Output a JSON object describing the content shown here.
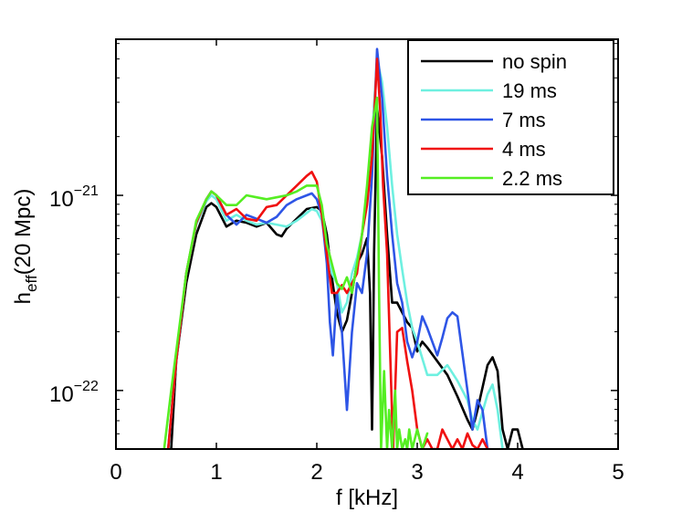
{
  "chart_data": {
    "type": "line",
    "title": "",
    "xlabel": "f [kHz]",
    "ylabel_main": "h",
    "ylabel_sub": "eff",
    "ylabel_rest": "(20 Mpc)",
    "y_scale": "log",
    "xlim": [
      0,
      5
    ],
    "ylim_log10": [
      -22.3,
      -20.2
    ],
    "x_ticks": [
      {
        "value": 0,
        "label": "0"
      },
      {
        "value": 1,
        "label": "1"
      },
      {
        "value": 2,
        "label": "2"
      },
      {
        "value": 3,
        "label": "3"
      },
      {
        "value": 4,
        "label": "4"
      },
      {
        "value": 5,
        "label": "5"
      }
    ],
    "y_ticks": [
      {
        "log10": -21,
        "base": "10",
        "exp": "−21"
      },
      {
        "log10": -22,
        "base": "10",
        "exp": "−22"
      }
    ],
    "legend_position": "top-right",
    "series": [
      {
        "name": "no spin",
        "color": "#000000",
        "x": [
          0.55,
          0.6,
          0.7,
          0.8,
          0.9,
          0.95,
          1.0,
          1.1,
          1.2,
          1.3,
          1.4,
          1.5,
          1.6,
          1.65,
          1.7,
          1.8,
          1.9,
          2.0,
          2.05,
          2.1,
          2.15,
          2.2,
          2.25,
          2.3,
          2.35,
          2.4,
          2.45,
          2.5,
          2.53,
          2.55,
          2.56,
          2.57,
          2.6,
          2.65,
          2.7,
          2.75,
          2.8,
          2.9,
          2.95,
          3.0,
          3.05,
          3.1,
          3.2,
          3.3,
          3.4,
          3.5,
          3.55,
          3.6,
          3.7,
          3.75,
          3.8,
          3.85,
          3.9,
          3.95,
          4.0,
          4.05
        ],
        "y": [
          -22.3,
          -21.85,
          -21.45,
          -21.2,
          -21.06,
          -21.04,
          -21.06,
          -21.16,
          -21.13,
          -21.14,
          -21.16,
          -21.14,
          -21.2,
          -21.21,
          -21.17,
          -21.12,
          -21.07,
          -21.06,
          -21.08,
          -21.2,
          -21.42,
          -21.6,
          -21.7,
          -21.64,
          -21.5,
          -21.35,
          -21.3,
          -21.22,
          -21.5,
          -22.2,
          -21.8,
          -21.3,
          -20.55,
          -20.8,
          -21.2,
          -21.55,
          -21.55,
          -21.65,
          -21.68,
          -21.8,
          -21.75,
          -21.78,
          -21.85,
          -21.92,
          -22.03,
          -22.15,
          -22.2,
          -22.1,
          -21.87,
          -21.83,
          -21.9,
          -22.2,
          -22.3,
          -22.2,
          -22.2,
          -22.3
        ]
      },
      {
        "name": "19 ms",
        "color": "#6ef0e0",
        "x": [
          0.52,
          0.6,
          0.7,
          0.8,
          0.9,
          0.95,
          1.0,
          1.1,
          1.2,
          1.3,
          1.4,
          1.5,
          1.6,
          1.7,
          1.8,
          1.9,
          1.95,
          2.0,
          2.05,
          2.1,
          2.15,
          2.2,
          2.25,
          2.3,
          2.35,
          2.4,
          2.45,
          2.5,
          2.55,
          2.6,
          2.65,
          2.7,
          2.75,
          2.8,
          2.85,
          2.9,
          2.95,
          3.0,
          3.1,
          3.2,
          3.3,
          3.4,
          3.5,
          3.55,
          3.6,
          3.7,
          3.75,
          3.8,
          3.85
        ],
        "y": [
          -22.3,
          -21.85,
          -21.4,
          -21.15,
          -21.03,
          -21.0,
          -21.02,
          -21.13,
          -21.1,
          -21.13,
          -21.15,
          -21.14,
          -21.15,
          -21.16,
          -21.13,
          -21.09,
          -21.07,
          -21.08,
          -21.13,
          -21.27,
          -21.4,
          -21.45,
          -21.6,
          -21.55,
          -21.4,
          -21.32,
          -21.2,
          -21.0,
          -20.7,
          -20.3,
          -20.42,
          -20.65,
          -20.95,
          -21.2,
          -21.38,
          -21.55,
          -21.68,
          -21.75,
          -21.92,
          -21.92,
          -21.87,
          -21.95,
          -22.05,
          -22.15,
          -22.2,
          -22.02,
          -21.97,
          -22.1,
          -22.3
        ]
      },
      {
        "name": "7 ms",
        "color": "#2e55e6",
        "x": [
          0.52,
          0.6,
          0.7,
          0.8,
          0.9,
          0.95,
          1.0,
          1.1,
          1.2,
          1.3,
          1.4,
          1.5,
          1.6,
          1.7,
          1.8,
          1.9,
          1.95,
          2.0,
          2.05,
          2.1,
          2.13,
          2.16,
          2.2,
          2.25,
          2.3,
          2.35,
          2.4,
          2.45,
          2.5,
          2.55,
          2.6,
          2.65,
          2.7,
          2.75,
          2.8,
          2.85,
          2.9,
          2.95,
          3.0,
          3.05,
          3.1,
          3.2,
          3.25,
          3.3,
          3.35,
          3.4,
          3.5,
          3.55,
          3.6,
          3.65,
          3.7
        ],
        "y": [
          -22.3,
          -21.85,
          -21.4,
          -21.14,
          -21.02,
          -20.98,
          -21.0,
          -21.1,
          -21.15,
          -21.1,
          -21.12,
          -21.14,
          -21.11,
          -21.05,
          -21.02,
          -21.0,
          -20.99,
          -21.02,
          -21.1,
          -21.35,
          -21.65,
          -21.82,
          -21.5,
          -21.7,
          -22.1,
          -21.7,
          -21.45,
          -21.5,
          -21.3,
          -20.9,
          -20.25,
          -20.5,
          -20.9,
          -21.2,
          -21.45,
          -21.55,
          -21.75,
          -21.83,
          -21.75,
          -21.62,
          -21.68,
          -21.82,
          -21.73,
          -21.63,
          -21.6,
          -21.62,
          -22.0,
          -22.2,
          -22.05,
          -22.1,
          -22.3
        ]
      },
      {
        "name": "4 ms",
        "color": "#f01010",
        "x": [
          0.52,
          0.6,
          0.7,
          0.8,
          0.9,
          0.95,
          1.0,
          1.1,
          1.2,
          1.3,
          1.4,
          1.5,
          1.6,
          1.7,
          1.8,
          1.9,
          1.95,
          2.0,
          2.05,
          2.1,
          2.15,
          2.2,
          2.25,
          2.3,
          2.35,
          2.4,
          2.45,
          2.5,
          2.55,
          2.6,
          2.63,
          2.66,
          2.7,
          2.73,
          2.76,
          2.8,
          2.85,
          2.9,
          2.95,
          3.0,
          3.05,
          3.1,
          3.15,
          3.2,
          3.25,
          3.3,
          3.35,
          3.4,
          3.45,
          3.5,
          3.55,
          3.6,
          3.65,
          3.7
        ],
        "y": [
          -22.3,
          -21.85,
          -21.4,
          -21.14,
          -21.02,
          -20.98,
          -21.0,
          -21.1,
          -21.07,
          -21.12,
          -21.13,
          -21.06,
          -21.05,
          -21.0,
          -20.95,
          -20.9,
          -20.88,
          -20.93,
          -21.1,
          -21.3,
          -21.5,
          -21.5,
          -21.46,
          -21.5,
          -21.45,
          -21.4,
          -21.2,
          -21.05,
          -20.8,
          -20.3,
          -20.55,
          -20.95,
          -21.3,
          -21.8,
          -22.3,
          -21.7,
          -21.68,
          -21.85,
          -22.0,
          -22.2,
          -22.3,
          -22.25,
          -22.3,
          -22.3,
          -22.2,
          -22.25,
          -22.3,
          -22.25,
          -22.3,
          -22.22,
          -22.28,
          -22.3,
          -22.25,
          -22.3
        ]
      },
      {
        "name": "2.2 ms",
        "color": "#55ee22",
        "x": [
          0.48,
          0.55,
          0.6,
          0.7,
          0.8,
          0.9,
          0.95,
          1.0,
          1.1,
          1.2,
          1.3,
          1.4,
          1.5,
          1.6,
          1.7,
          1.8,
          1.9,
          2.0,
          2.05,
          2.1,
          2.15,
          2.2,
          2.25,
          2.3,
          2.35,
          2.4,
          2.45,
          2.5,
          2.55,
          2.6,
          2.62,
          2.64,
          2.67,
          2.7,
          2.72,
          2.75,
          2.78,
          2.8,
          2.82,
          2.85,
          2.88,
          2.9,
          2.92,
          2.95,
          3.0,
          3.05,
          3.1
        ],
        "y": [
          -22.3,
          -22.0,
          -21.8,
          -21.4,
          -21.13,
          -21.02,
          -20.98,
          -21.0,
          -21.05,
          -21.05,
          -21.0,
          -21.01,
          -21.02,
          -21.01,
          -21.0,
          -20.98,
          -20.95,
          -20.95,
          -21.05,
          -21.25,
          -21.35,
          -21.45,
          -21.48,
          -21.42,
          -21.5,
          -21.35,
          -21.2,
          -20.95,
          -20.65,
          -20.5,
          -21.5,
          -22.3,
          -21.9,
          -22.3,
          -22.1,
          -22.3,
          -22.0,
          -22.3,
          -22.2,
          -22.3,
          -22.25,
          -22.3,
          -22.2,
          -22.3,
          -22.2,
          -22.3,
          -22.22
        ]
      }
    ]
  }
}
